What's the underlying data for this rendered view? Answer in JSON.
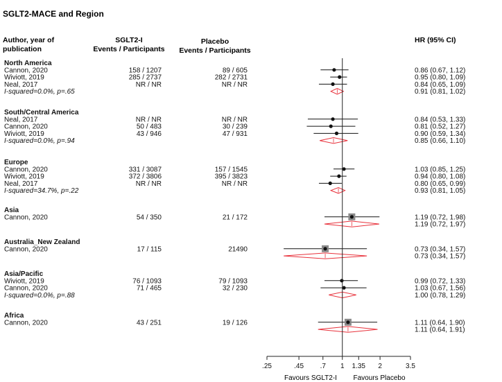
{
  "chart_data": {
    "type": "forest",
    "title": "SGLT2-MACE  and Region",
    "scale": "log",
    "reference_value": 1,
    "ticks": [
      {
        "value": 0.25,
        "label": ".25"
      },
      {
        "value": 0.45,
        "label": ".45"
      },
      {
        "value": 0.7,
        "label": ".7"
      },
      {
        "value": 1,
        "label": "1"
      },
      {
        "value": 1.35,
        "label": "1.35"
      },
      {
        "value": 2,
        "label": "2"
      },
      {
        "value": 3.5,
        "label": "3.5"
      }
    ],
    "columns": {
      "study": [
        "Author, year of",
        "publication"
      ],
      "sglt2": [
        "SGLT2-I",
        "Events / Participants"
      ],
      "placebo": [
        "Placebo",
        "Events / Participants"
      ],
      "hr": "HR (95% CI)"
    },
    "favours_left": "Favours SGLT2-I",
    "favours_right": "Favours Placebo",
    "groups": [
      {
        "name": "North America",
        "studies": [
          {
            "study": "Cannon, 2020",
            "sglt2": "158 / 1207",
            "placebo": "89 / 605",
            "hr": 0.86,
            "lo": 0.67,
            "hi": 1.12,
            "hr_text": "0.86 (0.67, 1.12)"
          },
          {
            "study": "Wiviott, 2019",
            "sglt2": "285 / 2737",
            "placebo": "282 / 2731",
            "hr": 0.95,
            "lo": 0.8,
            "hi": 1.09,
            "hr_text": "0.95 (0.80, 1.09)"
          },
          {
            "study": "Neal, 2017",
            "sglt2": "NR / NR",
            "placebo": "NR / NR",
            "hr": 0.84,
            "lo": 0.65,
            "hi": 1.09,
            "hr_text": "0.84 (0.65, 1.09)"
          }
        ],
        "heterogeneity": "I-squared=0.0%, p=.65",
        "pooled": {
          "hr": 0.91,
          "lo": 0.81,
          "hi": 1.02,
          "hr_text": "0.91 (0.81, 1.02)"
        }
      },
      {
        "name": "South/Central America",
        "studies": [
          {
            "study": "Neal, 2017",
            "sglt2": "NR / NR",
            "placebo": "NR / NR",
            "hr": 0.84,
            "lo": 0.53,
            "hi": 1.33,
            "hr_text": "0.84 (0.53, 1.33)"
          },
          {
            "study": "Cannon, 2020",
            "sglt2": "50 / 483",
            "placebo": "30 / 239",
            "hr": 0.81,
            "lo": 0.52,
            "hi": 1.27,
            "hr_text": "0.81 (0.52, 1.27)"
          },
          {
            "study": "Wiviott, 2019",
            "sglt2": "43 / 946",
            "placebo": "47 / 931",
            "hr": 0.9,
            "lo": 0.59,
            "hi": 1.34,
            "hr_text": "0.90 (0.59, 1.34)"
          }
        ],
        "heterogeneity": "I-squared=0.0%, p=.94",
        "pooled": {
          "hr": 0.85,
          "lo": 0.66,
          "hi": 1.1,
          "hr_text": "0.85 (0.66, 1.10)"
        }
      },
      {
        "name": "Europe",
        "studies": [
          {
            "study": "Cannon, 2020",
            "sglt2": "331 / 3087",
            "placebo": "157 / 1545",
            "hr": 1.03,
            "lo": 0.85,
            "hi": 1.25,
            "hr_text": "1.03 (0.85, 1.25)"
          },
          {
            "study": "Wiviott, 2019",
            "sglt2": "372 / 3806",
            "placebo": "395 / 3823",
            "hr": 0.94,
            "lo": 0.8,
            "hi": 1.08,
            "hr_text": "0.94 (0.80, 1.08)"
          },
          {
            "study": "Neal, 2017",
            "sglt2": "NR / NR",
            "placebo": "NR / NR",
            "hr": 0.8,
            "lo": 0.65,
            "hi": 0.99,
            "hr_text": "0.80 (0.65, 0.99)"
          }
        ],
        "heterogeneity": "I-squared=34.7%, p=.22",
        "pooled": {
          "hr": 0.93,
          "lo": 0.81,
          "hi": 1.05,
          "hr_text": "0.93 (0.81, 1.05)"
        }
      },
      {
        "name": "Asia",
        "studies": [
          {
            "study": "Cannon, 2020",
            "sglt2": "54 / 350",
            "placebo": "21 / 172",
            "hr": 1.19,
            "lo": 0.72,
            "hi": 1.98,
            "hr_text": "1.19 (0.72, 1.98)"
          }
        ],
        "heterogeneity": "",
        "pooled": {
          "hr": 1.19,
          "lo": 0.72,
          "hi": 1.97,
          "hr_text": "1.19 (0.72, 1.97)"
        }
      },
      {
        "name": "Australia_New Zealand",
        "studies": [
          {
            "study": "Cannon, 2020",
            "sglt2": "17 / 115",
            "placebo": "21490",
            "hr": 0.73,
            "lo": 0.34,
            "hi": 1.57,
            "hr_text": "0.73 (0.34, 1.57)"
          }
        ],
        "heterogeneity": "",
        "pooled": {
          "hr": 0.73,
          "lo": 0.34,
          "hi": 1.57,
          "hr_text": "0.73 (0.34, 1.57)"
        }
      },
      {
        "name": "Asia/Pacific",
        "studies": [
          {
            "study": "Wiviott, 2019",
            "sglt2": "76 / 1093",
            "placebo": "79 / 1093",
            "hr": 0.99,
            "lo": 0.72,
            "hi": 1.33,
            "hr_text": "0.99 (0.72, 1.33)"
          },
          {
            "study": "Cannon, 2020",
            "sglt2": "71 / 465",
            "placebo": "32 / 230",
            "hr": 1.03,
            "lo": 0.67,
            "hi": 1.56,
            "hr_text": "1.03 (0.67, 1.56)"
          }
        ],
        "heterogeneity": "I-squared=0.0%, p=.88",
        "pooled": {
          "hr": 1.0,
          "lo": 0.78,
          "hi": 1.29,
          "hr_text": "1.00 (0.78, 1.29)"
        }
      },
      {
        "name": "Africa",
        "studies": [
          {
            "study": "Cannon, 2020",
            "sglt2": "43 / 251",
            "placebo": "19 / 126",
            "hr": 1.11,
            "lo": 0.64,
            "hi": 1.9,
            "hr_text": "1.11 (0.64, 1.90)"
          }
        ],
        "heterogeneity": "",
        "pooled": {
          "hr": 1.11,
          "lo": 0.64,
          "hi": 1.91,
          "hr_text": "1.11 (0.64, 1.91)"
        }
      }
    ],
    "colors": {
      "text": "#111111",
      "marker": "#111111",
      "box": "#8a8a8a",
      "pooled": "#e8303a",
      "axis": "#222222"
    }
  }
}
